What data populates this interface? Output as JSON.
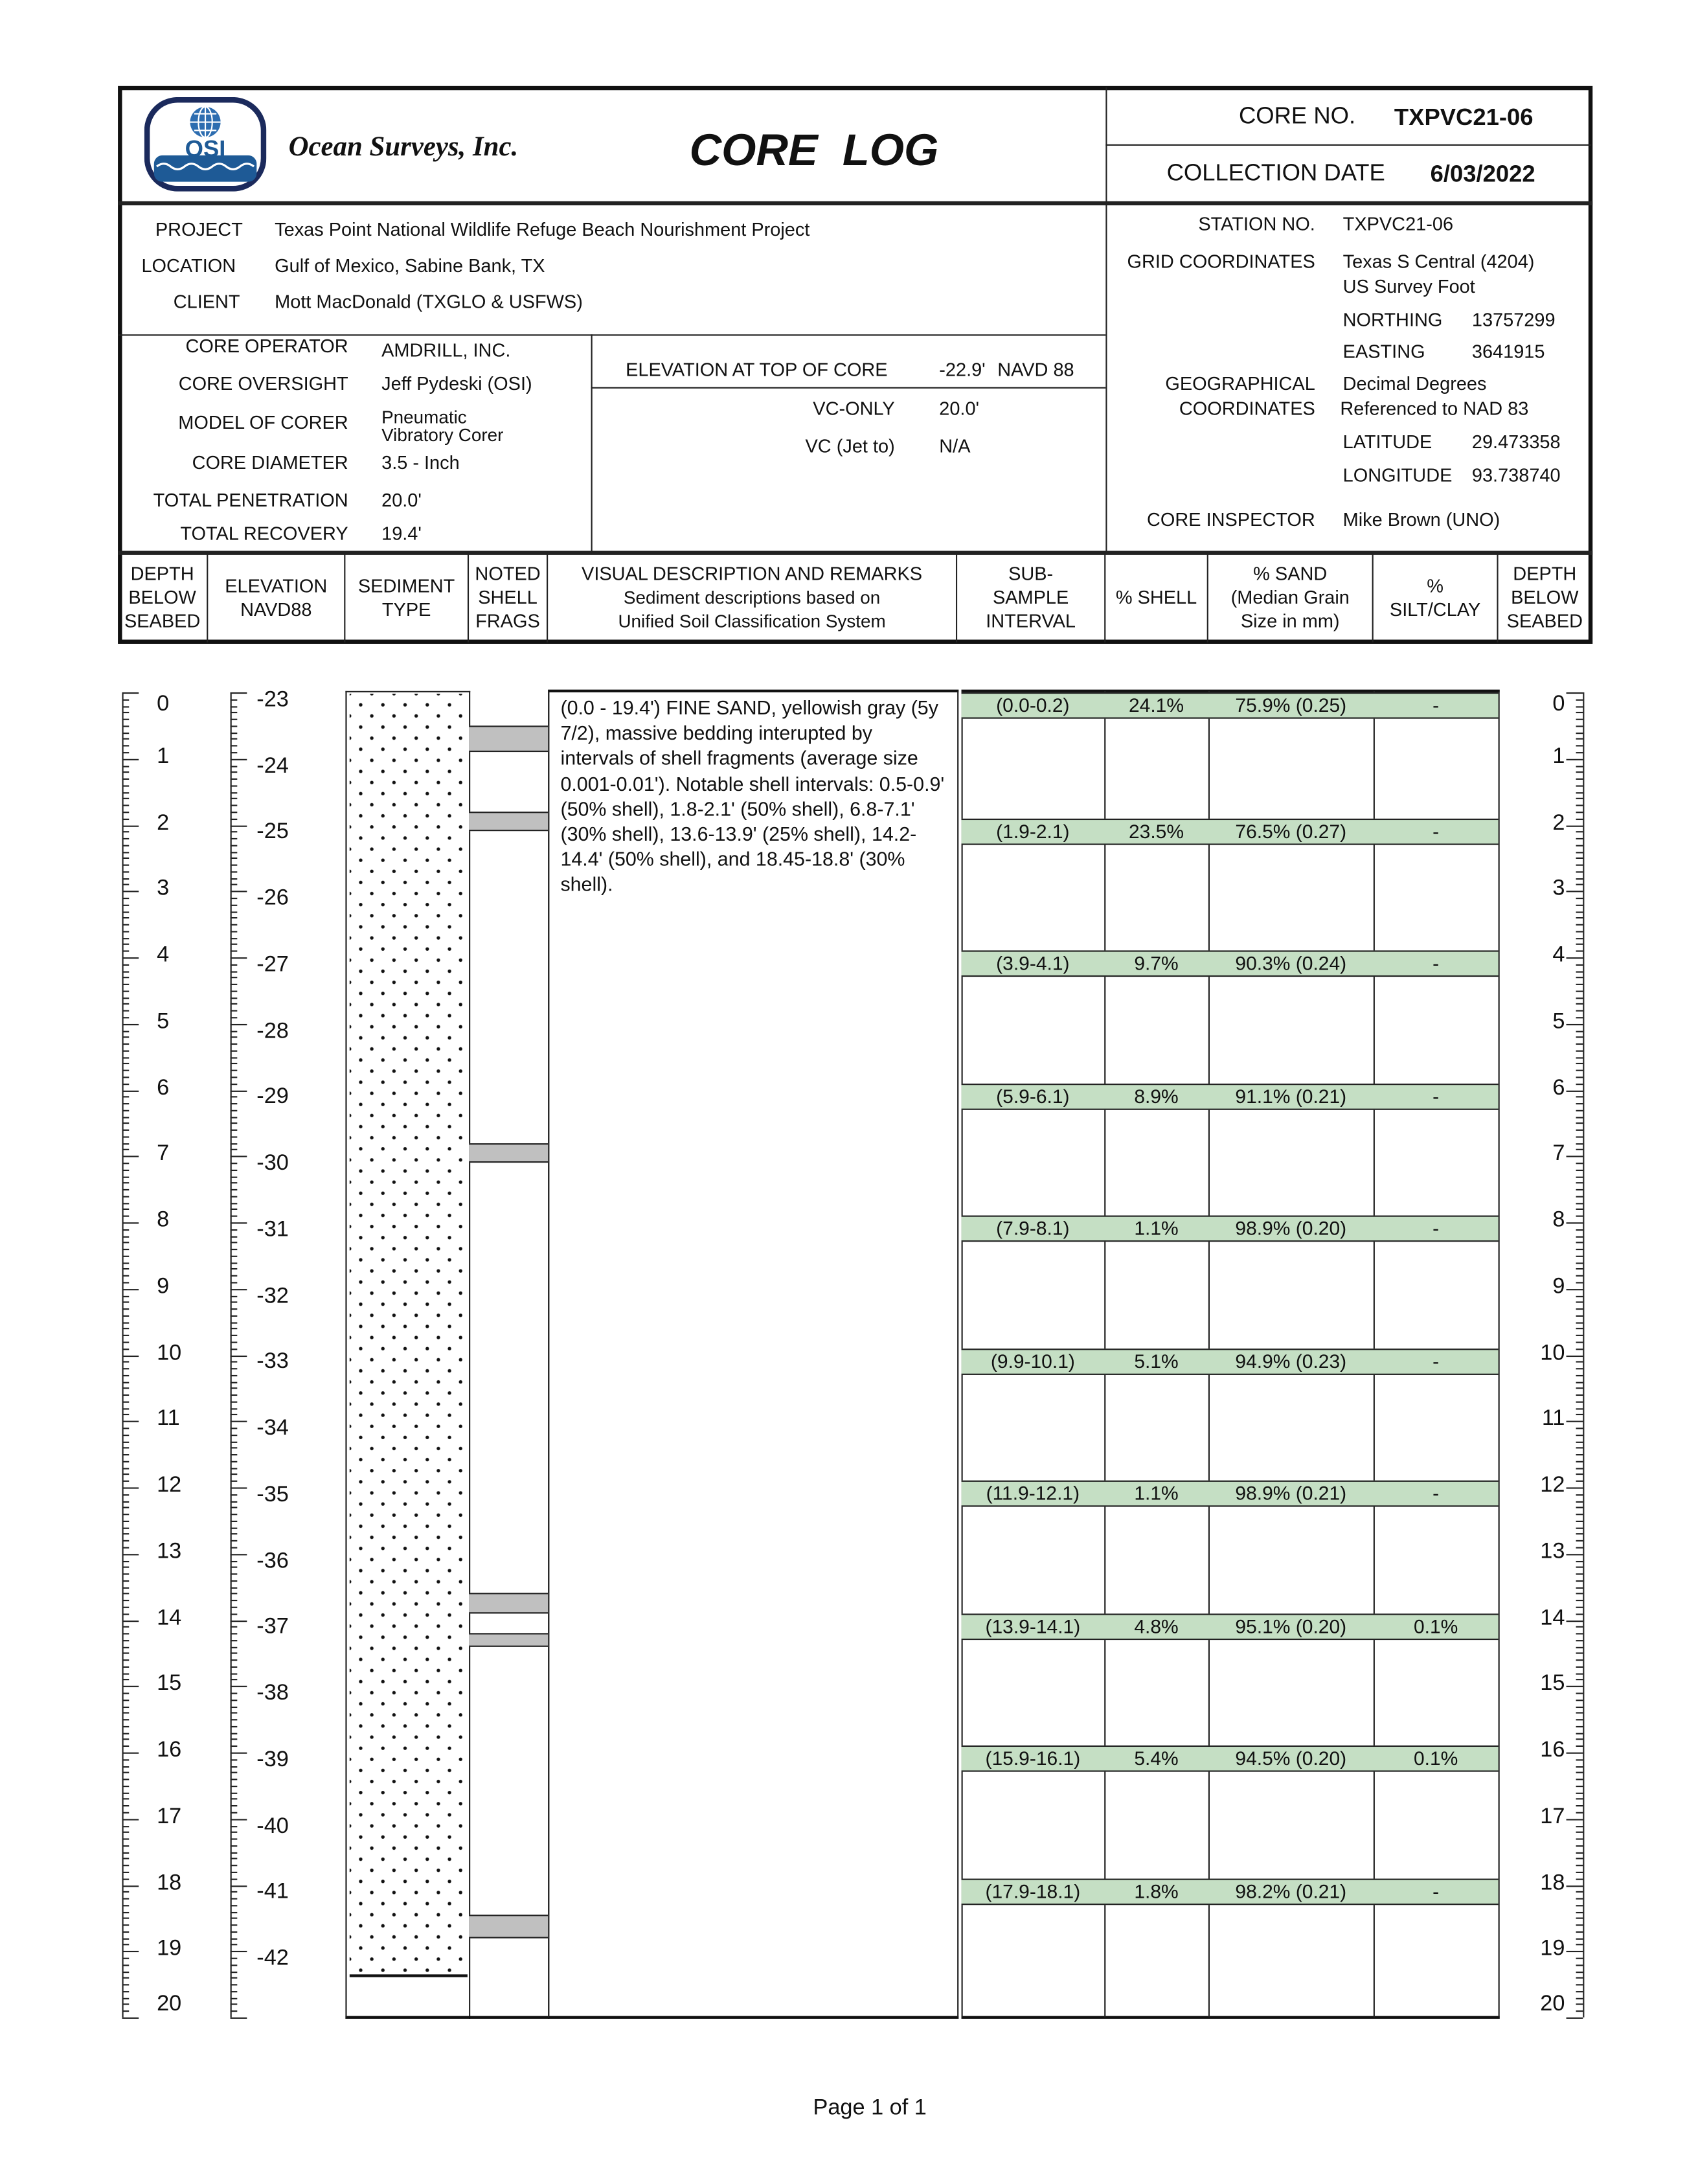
{
  "header": {
    "company": "Ocean Surveys, Inc.",
    "logo_text": "OSI",
    "title": "CORE  LOG",
    "core_no_label": "CORE NO.",
    "core_no": "TXPVC21-06",
    "collection_date_label": "COLLECTION DATE",
    "collection_date": "6/03/2022"
  },
  "project_info": {
    "project_label": "PROJECT",
    "project": "Texas Point National Wildlife Refuge Beach Nourishment Project",
    "location_label": "LOCATION",
    "location": "Gulf of Mexico, Sabine Bank, TX",
    "client_label": "CLIENT",
    "client": "Mott MacDonald (TXGLO & USFWS)"
  },
  "core_info": {
    "operator_label": "CORE OPERATOR",
    "operator": "AMDRILL, INC.",
    "oversight_label": "CORE OVERSIGHT",
    "oversight": "Jeff Pydeski (OSI)",
    "model_label": "MODEL OF CORER",
    "model_line1": "Pneumatic",
    "model_line2": "Vibratory Corer",
    "diameter_label": "CORE DIAMETER",
    "diameter": "3.5 - Inch",
    "penetration_label": "TOTAL PENETRATION",
    "penetration": "20.0'",
    "recovery_label": "TOTAL RECOVERY",
    "recovery": "19.4'"
  },
  "elevation_info": {
    "top_label": "ELEVATION AT TOP OF CORE",
    "top_value": "-22.9'",
    "top_datum": "NAVD 88",
    "vc_only_label": "VC-ONLY",
    "vc_only": "20.0'",
    "vc_jet_label": "VC (Jet to)",
    "vc_jet": "N/A"
  },
  "station_info": {
    "station_label": "STATION NO.",
    "station": "TXPVC21-06",
    "grid_label": "GRID COORDINATES",
    "grid_line1": "Texas S Central (4204)",
    "grid_line2": "US Survey Foot",
    "northing_label": "NORTHING",
    "northing": "13757299",
    "easting_label": "EASTING",
    "easting": "3641915",
    "geo_label_1": "GEOGRAPHICAL",
    "geo_label_2": "COORDINATES",
    "geo_line1": "Decimal Degrees",
    "geo_line2": "Referenced to NAD 83",
    "latitude_label": "LATITUDE",
    "latitude": "29.473358",
    "longitude_label": "LONGITUDE",
    "longitude": "93.738740",
    "inspector_label": "CORE INSPECTOR",
    "inspector": "Mike Brown (UNO)"
  },
  "columns": {
    "depth": [
      "DEPTH",
      "BELOW",
      "SEABED"
    ],
    "elevation": [
      "ELEVATION",
      "NAVD88"
    ],
    "sediment": [
      "SEDIMENT",
      "TYPE"
    ],
    "shell_frags": [
      "NOTED",
      "SHELL",
      "FRAGS"
    ],
    "description": [
      "VISUAL DESCRIPTION AND REMARKS",
      "Sediment descriptions based on",
      "Unified Soil Classification System"
    ],
    "subsample": [
      "SUB-",
      "SAMPLE",
      "INTERVAL"
    ],
    "pct_shell": [
      "% SHELL"
    ],
    "pct_sand": [
      "% SAND",
      "(Median Grain",
      "Size in mm)"
    ],
    "pct_silt": [
      "%",
      "SILT/CLAY"
    ],
    "depth_right": [
      "DEPTH",
      "BELOW",
      "SEABED"
    ]
  },
  "log": {
    "depth_range": [
      0,
      20
    ],
    "top_elevation": -22.9,
    "depth_labels": [
      "0",
      "1",
      "2",
      "3",
      "4",
      "5",
      "6",
      "7",
      "8",
      "9",
      "10",
      "11",
      "12",
      "13",
      "14",
      "15",
      "16",
      "17",
      "18",
      "19",
      "20"
    ],
    "elevation_labels": [
      "-23",
      "-24",
      "-25",
      "-26",
      "-27",
      "-28",
      "-29",
      "-30",
      "-31",
      "-32",
      "-33",
      "-34",
      "-35",
      "-36",
      "-37",
      "-38",
      "-39",
      "-40",
      "-41",
      "-42"
    ],
    "recovery_depth": 19.4,
    "sediment_pattern": "fine-sand-dots",
    "shell_intervals": [
      [
        0.5,
        0.9
      ],
      [
        1.8,
        2.1
      ],
      [
        6.8,
        7.1
      ],
      [
        13.6,
        13.9
      ],
      [
        14.2,
        14.4
      ],
      [
        18.45,
        18.8
      ]
    ],
    "description": "(0.0 - 19.4') FINE SAND, yellowish gray (5y 7/2), massive bedding interupted by intervals of shell fragments (average size 0.001-0.01'). Notable shell intervals: 0.5-0.9' (50% shell), 1.8-2.1' (50% shell), 6.8-7.1' (30% shell), 13.6-13.9' (25% shell), 14.2-14.4' (50% shell), and 18.45-18.8' (30% shell).",
    "sample_color": "#c5dfc4",
    "shell_color": "#c0c0c0",
    "samples": [
      {
        "start": 0.0,
        "interval": "(0.0-0.2)",
        "shell": "24.1%",
        "sand": "75.9% (0.25)",
        "silt": "-"
      },
      {
        "start": 1.9,
        "interval": "(1.9-2.1)",
        "shell": "23.5%",
        "sand": "76.5% (0.27)",
        "silt": "-"
      },
      {
        "start": 3.9,
        "interval": "(3.9-4.1)",
        "shell": "9.7%",
        "sand": "90.3% (0.24)",
        "silt": "-"
      },
      {
        "start": 5.9,
        "interval": "(5.9-6.1)",
        "shell": "8.9%",
        "sand": "91.1% (0.21)",
        "silt": "-"
      },
      {
        "start": 7.9,
        "interval": "(7.9-8.1)",
        "shell": "1.1%",
        "sand": "98.9% (0.20)",
        "silt": "-"
      },
      {
        "start": 9.9,
        "interval": "(9.9-10.1)",
        "shell": "5.1%",
        "sand": "94.9% (0.23)",
        "silt": "-"
      },
      {
        "start": 11.9,
        "interval": "(11.9-12.1)",
        "shell": "1.1%",
        "sand": "98.9% (0.21)",
        "silt": "-"
      },
      {
        "start": 13.9,
        "interval": "(13.9-14.1)",
        "shell": "4.8%",
        "sand": "95.1% (0.20)",
        "silt": "0.1%"
      },
      {
        "start": 15.9,
        "interval": "(15.9-16.1)",
        "shell": "5.4%",
        "sand": "94.5% (0.20)",
        "silt": "0.1%"
      },
      {
        "start": 17.9,
        "interval": "(17.9-18.1)",
        "shell": "1.8%",
        "sand": "98.2% (0.21)",
        "silt": "-"
      }
    ]
  },
  "footer": {
    "page": "Page 1 of 1"
  }
}
